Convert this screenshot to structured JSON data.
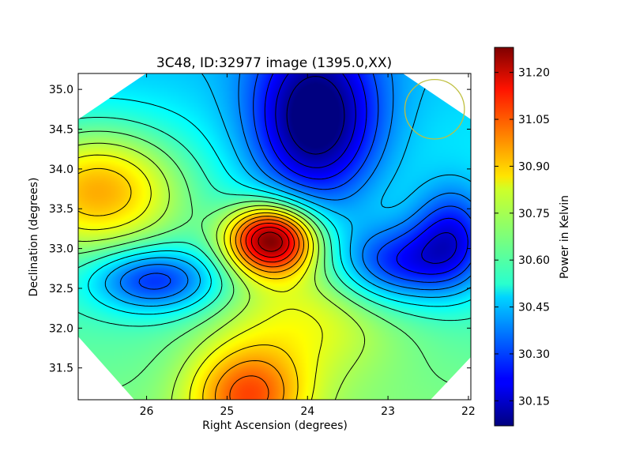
{
  "chart_data": {
    "type": "heatmap",
    "title": "3C48, ID:32977 image (1395.0,XX)",
    "xlabel": "Right Ascension (degrees)",
    "ylabel": "Declination (degrees)",
    "xlim": [
      26.85,
      21.97
    ],
    "ylim": [
      31.1,
      35.2
    ],
    "x_ticks": [
      26,
      25,
      24,
      23,
      22
    ],
    "x_tick_labels": [
      "26",
      "25",
      "24",
      "23",
      "22"
    ],
    "y_ticks": [
      31.5,
      32.0,
      32.5,
      33.0,
      33.5,
      34.0,
      34.5,
      35.0
    ],
    "y_tick_labels": [
      "31.5",
      "32.0",
      "32.5",
      "33.0",
      "33.5",
      "34.0",
      "34.5",
      "35.0"
    ],
    "colorbar": {
      "label": "Power in Kelvin",
      "range": [
        30.07,
        31.28
      ],
      "ticks": [
        30.15,
        30.3,
        30.45,
        30.6,
        30.75,
        30.9,
        31.05,
        31.2
      ],
      "tick_labels": [
        "30.15",
        "30.30",
        "30.45",
        "30.60",
        "30.75",
        "30.90",
        "31.05",
        "31.20"
      ],
      "colormap": "jet"
    },
    "features": [
      {
        "ra": 24.45,
        "dec": 33.12,
        "value": 31.26
      },
      {
        "ra": 26.6,
        "dec": 33.75,
        "value": 30.95
      },
      {
        "ra": 25.9,
        "dec": 32.6,
        "value": 30.22
      },
      {
        "ra": 22.9,
        "dec": 32.8,
        "value": 30.22
      },
      {
        "ra": 23.9,
        "dec": 34.6,
        "value": 30.08
      },
      {
        "ra": 22.2,
        "dec": 33.15,
        "value": 30.25
      },
      {
        "ra": 24.75,
        "dec": 31.15,
        "value": 30.92
      },
      {
        "ra": 24.0,
        "dec": 32.2,
        "value": 30.75
      }
    ],
    "contour_levels": [
      30.1,
      30.17,
      30.24,
      30.31,
      30.38,
      30.45,
      30.52,
      30.59,
      30.66,
      30.73,
      30.8,
      30.87,
      30.94,
      31.01,
      31.08,
      31.15,
      31.22
    ],
    "beam_marker": {
      "ra": 22.42,
      "dec": 34.75,
      "radius_deg": 0.37,
      "color": "#bfbf3f"
    },
    "grid": false
  }
}
